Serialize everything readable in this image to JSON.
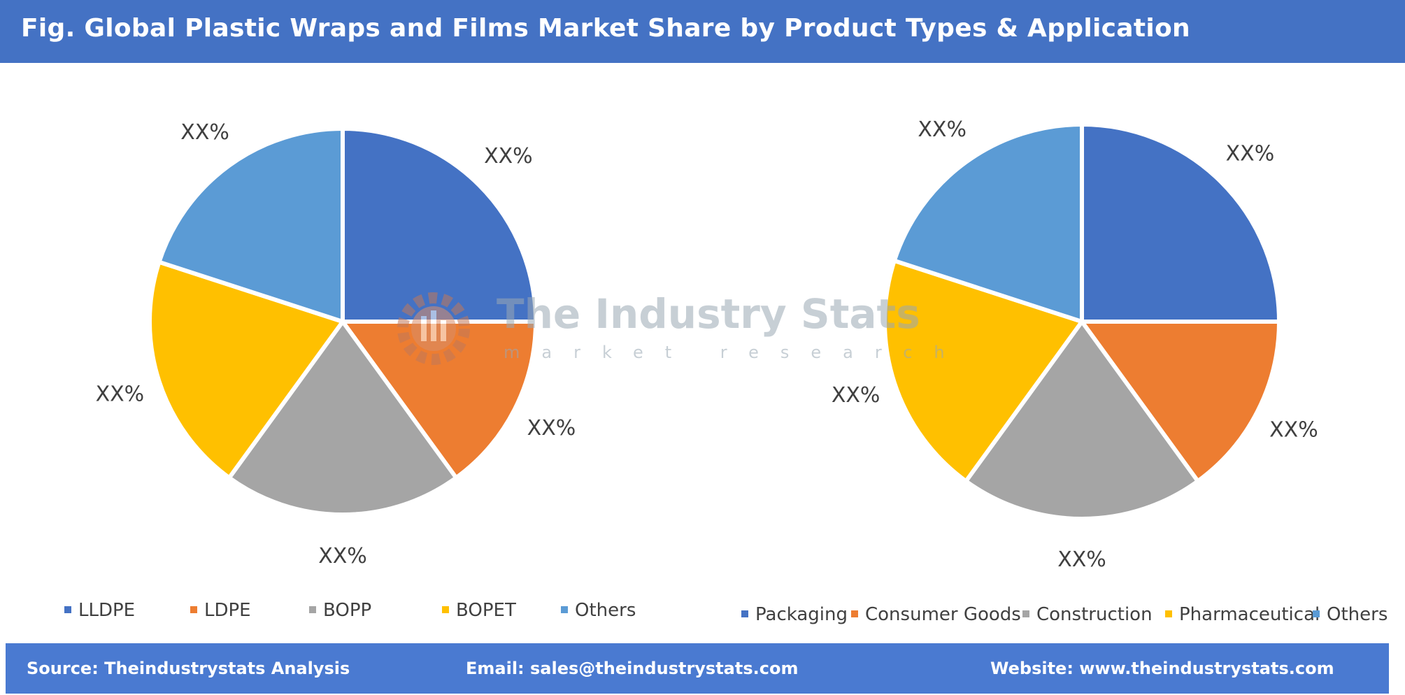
{
  "header": {
    "title": "Fig. Global Plastic Wraps and Films Market Share by Product Types & Application"
  },
  "watermark": {
    "name": "The Industry Stats",
    "subtitle": "market research"
  },
  "chart_data": [
    {
      "type": "pie",
      "categories": [
        "LLDPE",
        "LDPE",
        "BOPP",
        "BOPET",
        "Others"
      ],
      "values": [
        25,
        15,
        20,
        20,
        20
      ],
      "labels": [
        "XX%",
        "XX%",
        "XX%",
        "XX%",
        "XX%"
      ],
      "colors": [
        "#4472c4",
        "#ed7d31",
        "#a5a5a5",
        "#ffc000",
        "#5b9bd5"
      ],
      "legend": "bottom"
    },
    {
      "type": "pie",
      "categories": [
        "Packaging",
        "Consumer Goods",
        "Construction",
        "Pharmaceutical",
        "Others"
      ],
      "values": [
        25,
        15,
        20,
        20,
        20
      ],
      "labels": [
        "XX%",
        "XX%",
        "XX%",
        "XX%",
        "XX%"
      ],
      "colors": [
        "#4472c4",
        "#ed7d31",
        "#a5a5a5",
        "#ffc000",
        "#5b9bd5"
      ],
      "legend": "bottom"
    }
  ],
  "footer": {
    "source": "Source: Theindustrystats Analysis",
    "email": "Email: sales@theindustrystats.com",
    "website": "Website: www.theindustrystats.com"
  }
}
